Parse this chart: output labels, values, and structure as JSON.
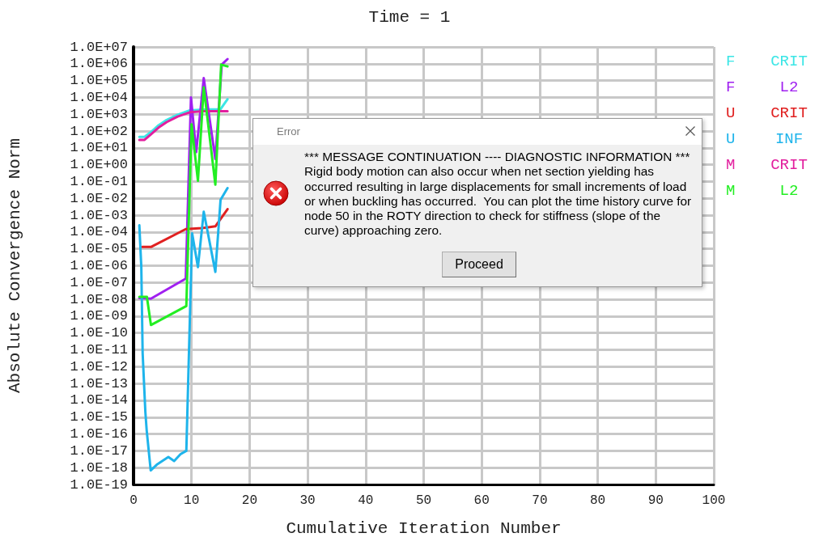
{
  "chart_data": {
    "type": "line",
    "title": "Time = 1",
    "xlabel": "Cumulative Iteration Number",
    "ylabel": "Absolute Convergence Norm",
    "xlim": [
      0,
      100
    ],
    "xticks": [
      0,
      10,
      20,
      30,
      40,
      50,
      60,
      70,
      80,
      90,
      100
    ],
    "ylim": [
      1e-19,
      10000000.0
    ],
    "yticks": [
      {
        "value": 1e-19,
        "label": "1.0E-19"
      },
      {
        "value": 1e-18,
        "label": "1.0E-18"
      },
      {
        "value": 1e-17,
        "label": "1.0E-17"
      },
      {
        "value": 1e-16,
        "label": "1.0E-16"
      },
      {
        "value": 1e-15,
        "label": "1.0E-15"
      },
      {
        "value": 1e-14,
        "label": "1.0E-14"
      },
      {
        "value": 1e-13,
        "label": "1.0E-13"
      },
      {
        "value": 1e-12,
        "label": "1.0E-12"
      },
      {
        "value": 1e-11,
        "label": "1.0E-11"
      },
      {
        "value": 1e-10,
        "label": "1.0E-10"
      },
      {
        "value": 1e-09,
        "label": "1.0E-09"
      },
      {
        "value": 1e-08,
        "label": "1.0E-08"
      },
      {
        "value": 1e-07,
        "label": "1.0E-07"
      },
      {
        "value": 1e-06,
        "label": "1.0E-06"
      },
      {
        "value": 1e-05,
        "label": "1.0E-05"
      },
      {
        "value": 0.0001,
        "label": "1.0E-04"
      },
      {
        "value": 0.001,
        "label": "1.0E-03"
      },
      {
        "value": 0.01,
        "label": "1.0E-02"
      },
      {
        "value": 0.1,
        "label": "1.0E-01"
      },
      {
        "value": 1,
        "label": "1.0E+00"
      },
      {
        "value": 10,
        "label": "1.0E+01"
      },
      {
        "value": 100,
        "label": "1.0E+02"
      },
      {
        "value": 1000,
        "label": "1.0E+03"
      },
      {
        "value": 10000,
        "label": "1.0E+04"
      },
      {
        "value": 100000,
        "label": "1.0E+05"
      },
      {
        "value": 1000000,
        "label": "1.0E+06"
      },
      {
        "value": 10000000,
        "label": "1.0E+07"
      }
    ],
    "log": true,
    "grid": true,
    "series": [
      {
        "name": "F CRIT",
        "color": "#3ce6e6",
        "x": [
          1.0,
          1.9,
          3.0,
          4.3,
          5.7,
          7.6,
          9.7,
          12.0,
          15.0,
          16.2
        ],
        "values": [
          45,
          45,
          87,
          220,
          460,
          930,
          1700,
          1900,
          2000,
          7800
        ]
      },
      {
        "name": "F L2",
        "color": "#a020f0",
        "x": [
          1.0,
          3.0,
          9.0,
          9.9,
          10.8,
          12.1,
          14.1,
          15.2,
          16.2
        ],
        "values": [
          1.2e-08,
          1.1e-08,
          1.7e-07,
          10000.0,
          5.6,
          140000.0,
          2.2,
          890000.0,
          1900000.0
        ]
      },
      {
        "name": "U CRIT",
        "color": "#e02020",
        "x": [
          1.5,
          3.0,
          9.0,
          11.8,
          14.1,
          16.2
        ],
        "values": [
          1.3e-05,
          1.3e-05,
          0.00015,
          0.00017,
          0.00022,
          0.0023
        ]
      },
      {
        "name": "U INF",
        "color": "#1eb4eb",
        "x": [
          1.0,
          1.34,
          1.57,
          2.04,
          2.27,
          2.96,
          4.1,
          6.0,
          7.0,
          8.1,
          9.1,
          10.1,
          11.1,
          12.1,
          14.1,
          15.0,
          16.2
        ],
        "values": [
          0.00025,
          8.3e-07,
          6.3e-12,
          2e-15,
          1.6e-16,
          6.9e-19,
          1.6e-18,
          4.3e-18,
          2.5e-18,
          6.3e-18,
          1e-17,
          8.3e-05,
          8.3e-07,
          0.0016,
          4.3e-07,
          0.0083,
          0.041
        ]
      },
      {
        "name": "M CRIT",
        "color": "#e21e9e",
        "x": [
          1.0,
          1.9,
          3.0,
          4.3,
          5.7,
          7.6,
          9.7,
          12.0,
          16.2
        ],
        "values": [
          30,
          30,
          63,
          160,
          340,
          720,
          1300,
          1500,
          1500
        ]
      },
      {
        "name": "M L2",
        "color": "#22ee22",
        "x": [
          1.0,
          2.3,
          3.0,
          9.1,
          10.0,
          11.1,
          12.1,
          14.1,
          15.1,
          16.2
        ],
        "values": [
          1.4e-08,
          1.4e-08,
          3e-10,
          4e-09,
          250,
          0.11,
          40000.0,
          0.065,
          890000.0,
          690000.0
        ]
      }
    ],
    "annotations": [
      "Error",
      "*** MESSAGE CONTINUATION ---- DIAGNOSTIC INFORMATION ***",
      "Rigid body motion can also occur when net section yielding has occurred resulting in large displacements for small increments of load or when buckling has occurred.  You can plot the time history curve for node 50 in the ROTY direction to check for stiffness (slope of the curve) approaching zero.",
      "Proceed"
    ]
  }
}
